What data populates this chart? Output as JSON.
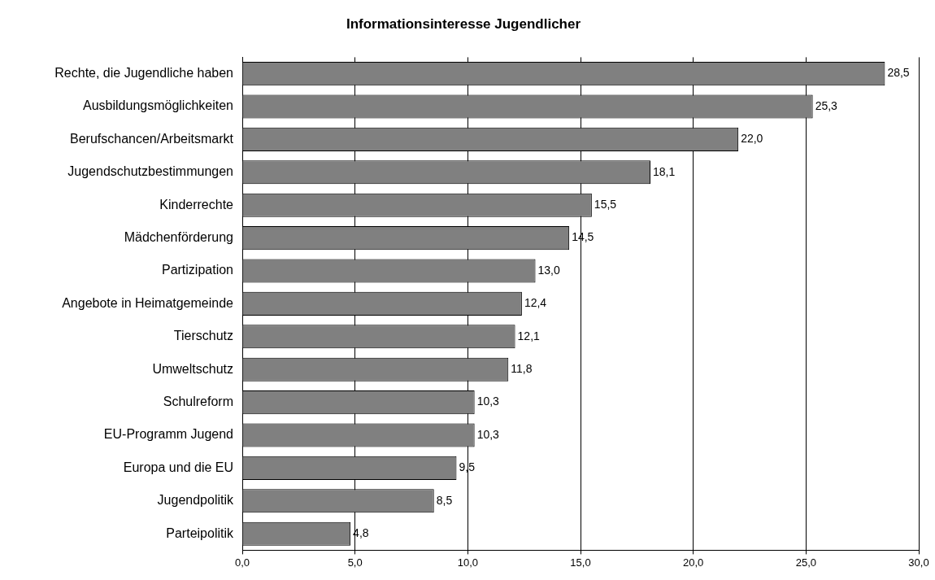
{
  "chart_data": {
    "type": "bar",
    "orientation": "horizontal",
    "title": "Informationsinteresse Jugendlicher",
    "categories": [
      "Rechte, die Jugendliche haben",
      "Ausbildungsmöglichkeiten",
      "Berufschancen/Arbeitsmarkt",
      "Jugendschutzbestimmungen",
      "Kinderrechte",
      "Mädchenförderung",
      "Partizipation",
      "Angebote in Heimatgemeinde",
      "Tierschutz",
      "Umweltschutz",
      "Schulreform",
      "EU-Programm Jugend",
      "Europa und die EU",
      "Jugendpolitik",
      "Parteipolitik"
    ],
    "values": [
      28.5,
      25.3,
      22.0,
      18.1,
      15.5,
      14.5,
      13.0,
      12.4,
      12.1,
      11.8,
      10.3,
      10.3,
      9.5,
      8.5,
      4.8
    ],
    "value_labels": [
      "28,5",
      "25,3",
      "22,0",
      "18,1",
      "15,5",
      "14,5",
      "13,0",
      "12,4",
      "12,1",
      "11,8",
      "10,3",
      "10,3",
      "9,5",
      "8,5",
      "4,8"
    ],
    "color": "#808080",
    "xlim": [
      0,
      30
    ],
    "xticks": [
      {
        "value": 0,
        "label": "0,0"
      },
      {
        "value": 5,
        "label": "5,0"
      },
      {
        "value": 10,
        "label": "10,0"
      },
      {
        "value": 15,
        "label": "15,0"
      },
      {
        "value": 20,
        "label": "20,0"
      },
      {
        "value": 25,
        "label": "25,0"
      },
      {
        "value": 30,
        "label": "30,0"
      }
    ],
    "grid": "x",
    "legend": false
  }
}
